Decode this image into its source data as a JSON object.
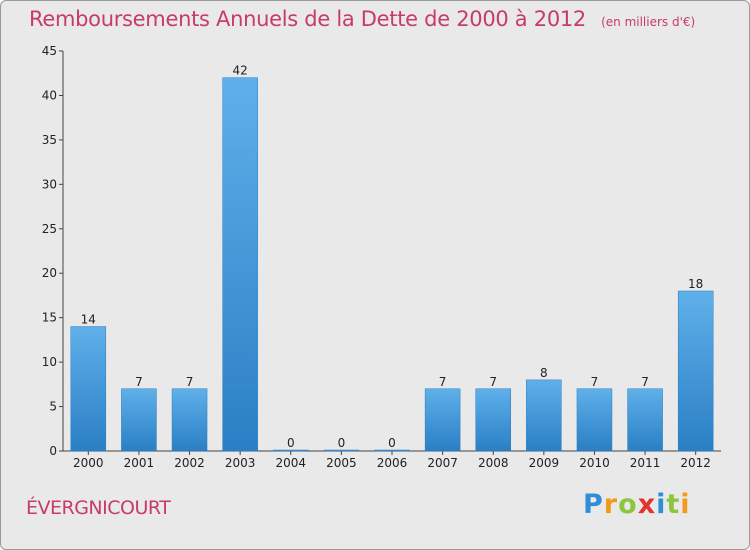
{
  "chart_data": {
    "type": "bar",
    "title": "Remboursements Annuels de la Dette de 2000 à 2012",
    "subtitle": "(en milliers d'€)",
    "categories": [
      "2000",
      "2001",
      "2002",
      "2003",
      "2004",
      "2005",
      "2006",
      "2007",
      "2008",
      "2009",
      "2010",
      "2011",
      "2012"
    ],
    "values": [
      14,
      7,
      7,
      42,
      0,
      0,
      0,
      7,
      7,
      8,
      7,
      7,
      18
    ],
    "ylim": [
      0,
      45
    ],
    "yticks": [
      0,
      5,
      10,
      15,
      20,
      25,
      30,
      35,
      40,
      45
    ],
    "xlabel": "",
    "ylabel": "",
    "grid": false,
    "bar_color": "#3d97d9"
  },
  "commune": "ÉVERGNICOURT",
  "brand": {
    "text": "Proxiti",
    "letters": [
      {
        "char": "P",
        "color": "#2f8ed6"
      },
      {
        "char": "r",
        "color": "#f29a1e"
      },
      {
        "char": "o",
        "color": "#8cc63f"
      },
      {
        "char": "x",
        "color": "#e5322d"
      },
      {
        "char": "i",
        "color": "#2f8ed6"
      },
      {
        "char": "t",
        "color": "#8cc63f"
      },
      {
        "char": "i",
        "color": "#f29a1e"
      }
    ]
  }
}
